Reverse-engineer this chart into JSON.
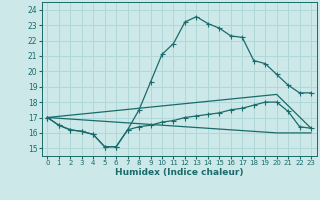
{
  "bg_color": "#cce8e8",
  "grid_color": "#b0d8d8",
  "line_color": "#1a6b6b",
  "xlabel": "Humidex (Indice chaleur)",
  "xlim": [
    -0.5,
    23.5
  ],
  "ylim": [
    14.5,
    24.5
  ],
  "yticks": [
    15,
    16,
    17,
    18,
    19,
    20,
    21,
    22,
    23,
    24
  ],
  "xticks": [
    0,
    1,
    2,
    3,
    4,
    5,
    6,
    7,
    8,
    9,
    10,
    11,
    12,
    13,
    14,
    15,
    16,
    17,
    18,
    19,
    20,
    21,
    22,
    23
  ],
  "line1_x": [
    0,
    1,
    2,
    3,
    4,
    5,
    6,
    7,
    8,
    9,
    10,
    11,
    12,
    13,
    14,
    15,
    16,
    17,
    18,
    19,
    20,
    21,
    22,
    23
  ],
  "line1_y": [
    17.0,
    16.5,
    16.2,
    16.1,
    15.9,
    15.1,
    15.1,
    16.2,
    17.5,
    19.3,
    21.1,
    21.8,
    23.2,
    23.55,
    23.1,
    22.8,
    22.3,
    22.2,
    20.7,
    20.5,
    19.8,
    19.1,
    18.6,
    18.6
  ],
  "line2_x": [
    0,
    1,
    2,
    3,
    4,
    5,
    6,
    7,
    8,
    9,
    10,
    11,
    12,
    13,
    14,
    15,
    16,
    17,
    18,
    19,
    20,
    21,
    22,
    23
  ],
  "line2_y": [
    17.0,
    16.5,
    16.2,
    16.1,
    15.9,
    15.1,
    15.1,
    16.2,
    16.4,
    16.5,
    16.7,
    16.8,
    17.0,
    17.1,
    17.2,
    17.3,
    17.5,
    17.6,
    17.8,
    18.0,
    18.0,
    17.4,
    16.4,
    16.3
  ],
  "line3_x": [
    0,
    20,
    23
  ],
  "line3_y": [
    17.0,
    18.5,
    16.3
  ],
  "line4_x": [
    0,
    20,
    23
  ],
  "line4_y": [
    17.0,
    16.0,
    16.0
  ]
}
